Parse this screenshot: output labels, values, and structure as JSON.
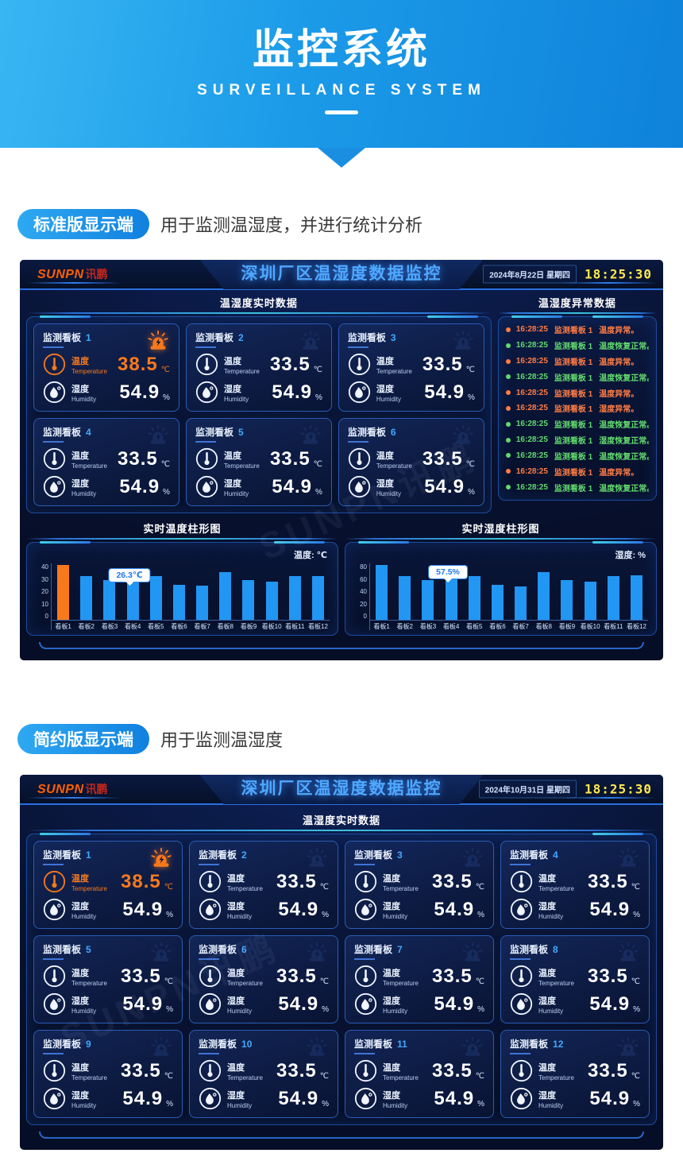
{
  "banner": {
    "title": "监控系统",
    "subtitle": "SURVEILLANCE SYSTEM"
  },
  "intro1": {
    "badge": "标准版显示端",
    "desc": "用于监测温湿度，并进行统计分析"
  },
  "intro2": {
    "badge": "简约版显示端",
    "desc": "用于监测温湿度"
  },
  "common": {
    "logo_en": "SUNPN",
    "logo_cn": "讯鹏",
    "dashboard_title": "深圳厂区温湿度数据监控",
    "time": "18:25:30",
    "realtime_title": "温湿度实时数据",
    "panel_label": "监测看板",
    "temp_cn": "温度",
    "temp_en": "Temperature",
    "temp_unit": "℃",
    "hum_cn": "湿度",
    "hum_en": "Humidity",
    "hum_unit": "%",
    "watermark": "SUNPN讯鹏",
    "colors": {
      "accent_blue": "#2e7ef0",
      "alarm_orange": "#f8791c",
      "ok_green": "#62d96e",
      "bar_blue": "#2196f3",
      "clock_yellow": "#ffe94d"
    }
  },
  "d1": {
    "date": "2024年8月22日",
    "weekday": "星期四",
    "abnormal_title": "温湿度异常数据",
    "panels": [
      {
        "num": "1",
        "temp": "38.5",
        "hum": "54.9",
        "alarm": true
      },
      {
        "num": "2",
        "temp": "33.5",
        "hum": "54.9"
      },
      {
        "num": "3",
        "temp": "33.5",
        "hum": "54.9"
      },
      {
        "num": "4",
        "temp": "33.5",
        "hum": "54.9"
      },
      {
        "num": "5",
        "temp": "33.5",
        "hum": "54.9"
      },
      {
        "num": "6",
        "temp": "33.5",
        "hum": "54.9"
      }
    ],
    "logs": [
      {
        "time": "16:28:25",
        "panel": "监测看板 1",
        "msg": "温度异常。",
        "type": "alarm"
      },
      {
        "time": "16:28:25",
        "panel": "监测看板 1",
        "msg": "温度恢复正常。",
        "type": "ok"
      },
      {
        "time": "16:28:25",
        "panel": "监测看板 1",
        "msg": "温度异常。",
        "type": "alarm"
      },
      {
        "time": "16:28:25",
        "panel": "监测看板 1",
        "msg": "温度恢复正常。",
        "type": "ok"
      },
      {
        "time": "16:28:25",
        "panel": "监测看板 1",
        "msg": "温度异常。",
        "type": "alarm"
      },
      {
        "time": "16:28:25",
        "panel": "监测看板 1",
        "msg": "湿度异常。",
        "type": "alarm"
      },
      {
        "time": "16:28:25",
        "panel": "监测看板 1",
        "msg": "温度恢复正常。",
        "type": "ok"
      },
      {
        "time": "16:28:25",
        "panel": "监测看板 1",
        "msg": "湿度恢复正常。",
        "type": "ok"
      },
      {
        "time": "16:28:25",
        "panel": "监测看板 1",
        "msg": "温度恢复正常。",
        "type": "ok"
      },
      {
        "time": "16:28:25",
        "panel": "监测看板 1",
        "msg": "温度异常。",
        "type": "alarm"
      },
      {
        "time": "16:28:25",
        "panel": "监测看板 1",
        "msg": "温度恢复正常。",
        "type": "ok"
      }
    ],
    "charts": [
      {
        "type": "bar",
        "title": "实时温度柱形图",
        "legend": "温度: ℃",
        "ymax": 40,
        "yticks": [
          {
            "v": "40"
          },
          {
            "v": "30"
          },
          {
            "v": "20"
          },
          {
            "v": "10"
          },
          {
            "v": "0"
          }
        ],
        "tooltip": "26.3℃",
        "bars": [
          {
            "label": "看板1",
            "value": 39,
            "alarm": true
          },
          {
            "label": "看板2",
            "value": 31
          },
          {
            "label": "看板3",
            "value": 28
          },
          {
            "label": "看板4",
            "value": 26.3
          },
          {
            "label": "看板5",
            "value": 31
          },
          {
            "label": "看板6",
            "value": 25
          },
          {
            "label": "看板7",
            "value": 24
          },
          {
            "label": "看板8",
            "value": 34
          },
          {
            "label": "看板9",
            "value": 28
          },
          {
            "label": "看板10",
            "value": 27
          },
          {
            "label": "看板11",
            "value": 31
          },
          {
            "label": "看板12",
            "value": 31
          }
        ]
      },
      {
        "type": "bar",
        "title": "实时湿度柱形图",
        "legend": "湿度: %",
        "ymax": 80,
        "yticks": [
          {
            "v": "80"
          },
          {
            "v": "60"
          },
          {
            "v": "40"
          },
          {
            "v": "20"
          },
          {
            "v": "0"
          }
        ],
        "tooltip": "57.5%",
        "bars": [
          {
            "label": "看板1",
            "value": 78
          },
          {
            "label": "看板2",
            "value": 62
          },
          {
            "label": "看板3",
            "value": 56
          },
          {
            "label": "看板4",
            "value": 57.5
          },
          {
            "label": "看板5",
            "value": 62
          },
          {
            "label": "看板6",
            "value": 50
          },
          {
            "label": "看板7",
            "value": 47
          },
          {
            "label": "看板8",
            "value": 68
          },
          {
            "label": "看板9",
            "value": 56
          },
          {
            "label": "看板10",
            "value": 54
          },
          {
            "label": "看板11",
            "value": 62
          },
          {
            "label": "看板12",
            "value": 63
          }
        ]
      }
    ]
  },
  "d2": {
    "date": "2024年10月31日",
    "weekday": "星期四",
    "panels": [
      {
        "num": "1",
        "temp": "38.5",
        "hum": "54.9",
        "alarm": true
      },
      {
        "num": "2",
        "temp": "33.5",
        "hum": "54.9"
      },
      {
        "num": "3",
        "temp": "33.5",
        "hum": "54.9"
      },
      {
        "num": "4",
        "temp": "33.5",
        "hum": "54.9"
      },
      {
        "num": "5",
        "temp": "33.5",
        "hum": "54.9"
      },
      {
        "num": "6",
        "temp": "33.5",
        "hum": "54.9"
      },
      {
        "num": "7",
        "temp": "33.5",
        "hum": "54.9"
      },
      {
        "num": "8",
        "temp": "33.5",
        "hum": "54.9"
      },
      {
        "num": "9",
        "temp": "33.5",
        "hum": "54.9"
      },
      {
        "num": "10",
        "temp": "33.5",
        "hum": "54.9"
      },
      {
        "num": "11",
        "temp": "33.5",
        "hum": "54.9"
      },
      {
        "num": "12",
        "temp": "33.5",
        "hum": "54.9"
      }
    ]
  }
}
